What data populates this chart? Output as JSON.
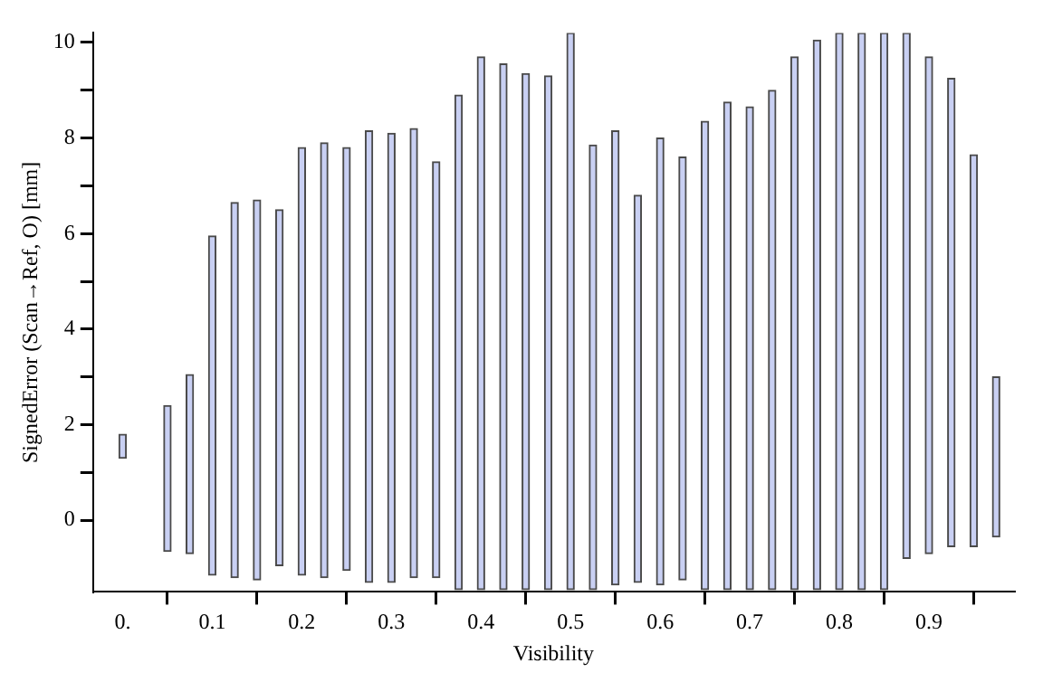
{
  "chart_data": {
    "type": "bar",
    "xlabel": "Visibility",
    "ylabel": "SignedError (Scan→Ref, O) [mm]",
    "x": [
      0,
      0.05,
      0.075,
      0.1,
      0.125,
      0.15,
      0.175,
      0.2,
      0.225,
      0.25,
      0.275,
      0.3,
      0.325,
      0.35,
      0.375,
      0.4,
      0.425,
      0.45,
      0.475,
      0.5,
      0.525,
      0.55,
      0.575,
      0.6,
      0.625,
      0.65,
      0.675,
      0.7,
      0.725,
      0.75,
      0.775,
      0.8,
      0.825,
      0.85,
      0.875,
      0.9,
      0.925,
      0.95,
      0.975
    ],
    "base": [
      1.3,
      -0.65,
      -0.7,
      -1.15,
      -1.2,
      -1.25,
      -0.95,
      -1.15,
      -1.2,
      -1.05,
      -1.3,
      -1.3,
      -1.2,
      -1.2,
      -1.45,
      -1.45,
      -1.45,
      -1.45,
      -1.45,
      -1.45,
      -1.45,
      -1.35,
      -1.3,
      -1.35,
      -1.25,
      -1.45,
      -1.45,
      -1.45,
      -1.45,
      -1.45,
      -1.45,
      -1.45,
      -1.45,
      -1.45,
      -0.8,
      -0.7,
      -0.55,
      -0.55,
      -0.35
    ],
    "values": [
      0.5,
      3.05,
      3.75,
      7.1,
      7.85,
      7.95,
      7.45,
      8.95,
      9.1,
      8.85,
      9.45,
      9.4,
      9.4,
      8.7,
      10.35,
      11.15,
      11,
      10.8,
      10.75,
      11.65,
      9.3,
      9.5,
      8.1,
      9.35,
      8.85,
      9.8,
      10.2,
      10.1,
      10.45,
      11.15,
      11.5,
      11.65,
      11.65,
      11.65,
      11,
      10.4,
      9.8,
      8.2,
      3.35
    ],
    "color": "#c9d0f3",
    "xlim": [
      -0.033,
      0.995
    ],
    "ylim": [
      -1.5,
      10.2
    ],
    "xticks": [
      {
        "value": 0,
        "label": "0."
      },
      0.1,
      0.2,
      0.3,
      0.4,
      0.5,
      0.6,
      0.7,
      0.8,
      0.9
    ],
    "yticks": [
      0,
      {
        "value": 1,
        "label": null
      },
      2,
      {
        "value": 3,
        "label": null
      },
      4,
      {
        "value": 5,
        "label": null
      },
      6,
      {
        "value": 7,
        "label": null
      },
      8,
      {
        "value": 9,
        "label": null
      },
      10
    ],
    "grid": false,
    "legend": false
  }
}
